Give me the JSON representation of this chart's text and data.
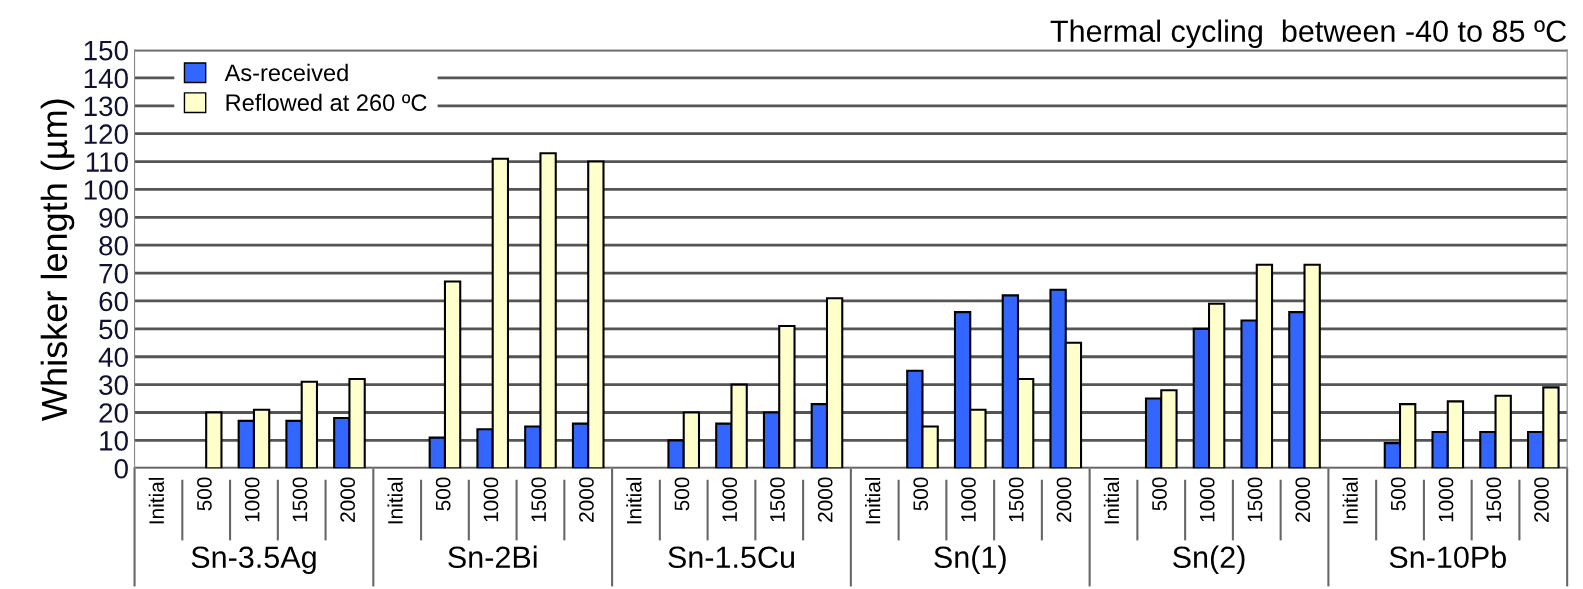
{
  "chart_data": {
    "type": "bar",
    "title": "Thermal cycling  between -40 to 85 ºC",
    "ylabel": "Whisker length (µm)",
    "categories": [
      "Initial",
      "500",
      "1000",
      "1500",
      "2000",
      "Initial",
      "500",
      "1000",
      "1500",
      "2000",
      "Initial",
      "500",
      "1000",
      "1500",
      "2000",
      "Initial",
      "500",
      "1000",
      "1500",
      "2000",
      "Initial",
      "500",
      "1000",
      "1500",
      "2000",
      "Initial",
      "500",
      "1000",
      "1500",
      "2000"
    ],
    "annotations": [
      "Sn-3.5Ag",
      "Sn-2Bi",
      "Sn-1.5Cu",
      "Sn(1)",
      "Sn(2)",
      "Sn-10Pb"
    ],
    "series": [
      {
        "name": "As-received",
        "color": "#3366ff",
        "values": [
          null,
          null,
          17,
          17,
          18,
          null,
          11,
          14,
          15,
          16,
          null,
          10,
          16,
          20,
          23,
          null,
          35,
          56,
          62,
          64,
          null,
          25,
          50,
          53,
          56,
          null,
          9,
          13,
          13,
          13
        ]
      },
      {
        "name": "Reflowed at 260 ºC",
        "color": "#ffffcc",
        "values": [
          null,
          20,
          21,
          31,
          32,
          null,
          67,
          111,
          113,
          110,
          null,
          20,
          30,
          51,
          61,
          null,
          15,
          21,
          32,
          45,
          null,
          28,
          59,
          73,
          73,
          null,
          23,
          24,
          26,
          29
        ]
      }
    ],
    "ylim": [
      0,
      150
    ],
    "yticks": [
      0,
      10,
      20,
      30,
      40,
      50,
      60,
      70,
      80,
      90,
      100,
      110,
      120,
      130,
      140,
      150
    ],
    "grid": "y",
    "legend": "top left"
  }
}
